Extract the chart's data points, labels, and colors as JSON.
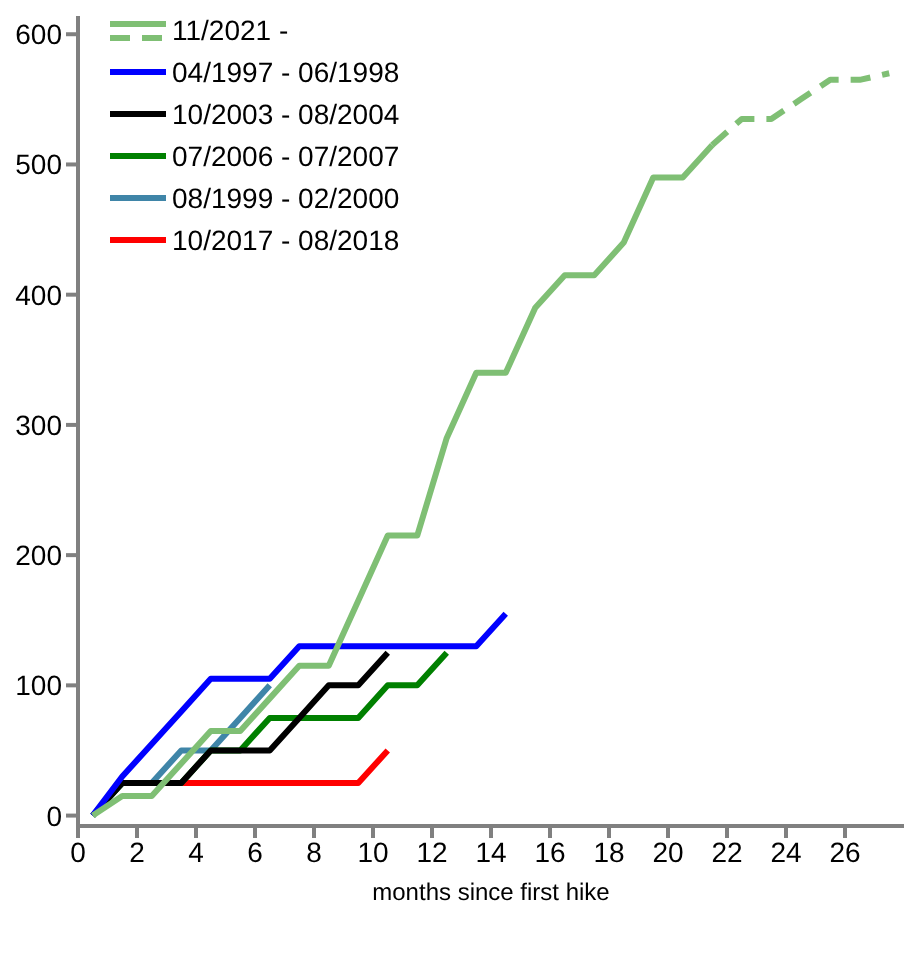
{
  "chart_data": {
    "type": "line",
    "xlabel": "months since first hike",
    "x": [
      0.5,
      1.5,
      2.5,
      3.5,
      4.5,
      5.5,
      6.5,
      7.5,
      8.5,
      9.5,
      10.5,
      11.5,
      12.5,
      13.5,
      14.5,
      15.5,
      16.5,
      17.5,
      18.5,
      19.5,
      20.5,
      21.5,
      22.5,
      23.5,
      24.5,
      25.5,
      26.5,
      27.5
    ],
    "series": [
      {
        "name": "11/2021 -",
        "color": "#7fbf74",
        "values": [
          0,
          15,
          15,
          40,
          65,
          65,
          90,
          115,
          115,
          165,
          215,
          215,
          290,
          340,
          340,
          390,
          415,
          415,
          440,
          490,
          490,
          515,
          null,
          null,
          null,
          null,
          null,
          null
        ]
      },
      {
        "color": "#7fbf74",
        "line_style": "dashed",
        "values": [
          null,
          null,
          null,
          null,
          null,
          null,
          null,
          null,
          null,
          null,
          null,
          null,
          null,
          null,
          null,
          null,
          null,
          null,
          null,
          null,
          null,
          515,
          535,
          535,
          550,
          565,
          565,
          570
        ]
      },
      {
        "name": "04/1997 - 06/1998",
        "color": "#0000ff",
        "values": [
          0,
          30,
          55,
          80,
          105,
          105,
          105,
          130,
          130,
          130,
          130,
          130,
          130,
          130,
          155,
          null,
          null,
          null,
          null,
          null,
          null,
          null,
          null,
          null,
          null,
          null,
          null,
          null
        ]
      },
      {
        "name": "10/2003 - 08/2004",
        "color": "#000000",
        "values": [
          0,
          25,
          25,
          25,
          50,
          50,
          50,
          75,
          100,
          100,
          125,
          null,
          null,
          null,
          null,
          null,
          null,
          null,
          null,
          null,
          null,
          null,
          null,
          null,
          null,
          null,
          null,
          null
        ]
      },
      {
        "name": "07/2006 - 07/2007",
        "color": "#008000",
        "values": [
          0,
          25,
          25,
          25,
          50,
          50,
          75,
          75,
          75,
          75,
          100,
          100,
          125,
          null,
          null,
          null,
          null,
          null,
          null,
          null,
          null,
          null,
          null,
          null,
          null,
          null,
          null,
          null
        ]
      },
      {
        "name": "08/1999 - 02/2000",
        "color": "#3f85a8",
        "values": [
          0,
          25,
          25,
          50,
          50,
          75,
          100,
          null,
          null,
          null,
          null,
          null,
          null,
          null,
          null,
          null,
          null,
          null,
          null,
          null,
          null,
          null,
          null,
          null,
          null,
          null,
          null,
          null
        ]
      },
      {
        "name": "10/2017 - 08/2018",
        "color": "#ff0000",
        "values": [
          null,
          null,
          null,
          25,
          25,
          25,
          25,
          25,
          25,
          25,
          50,
          null,
          null,
          null,
          null,
          null,
          null,
          null,
          null,
          null,
          null,
          null,
          null,
          null,
          null,
          null,
          null,
          null
        ]
      }
    ],
    "xlim": [
      0,
      28
    ],
    "xticks": [
      0,
      2,
      4,
      6,
      8,
      10,
      12,
      14,
      16,
      18,
      20,
      22,
      24,
      26
    ],
    "ylim": [
      -8,
      614
    ],
    "yticks": [
      0,
      100,
      200,
      300,
      400,
      500,
      600
    ],
    "grid": false,
    "legend": "top left",
    "marker": "none",
    "line_style": "solid"
  }
}
